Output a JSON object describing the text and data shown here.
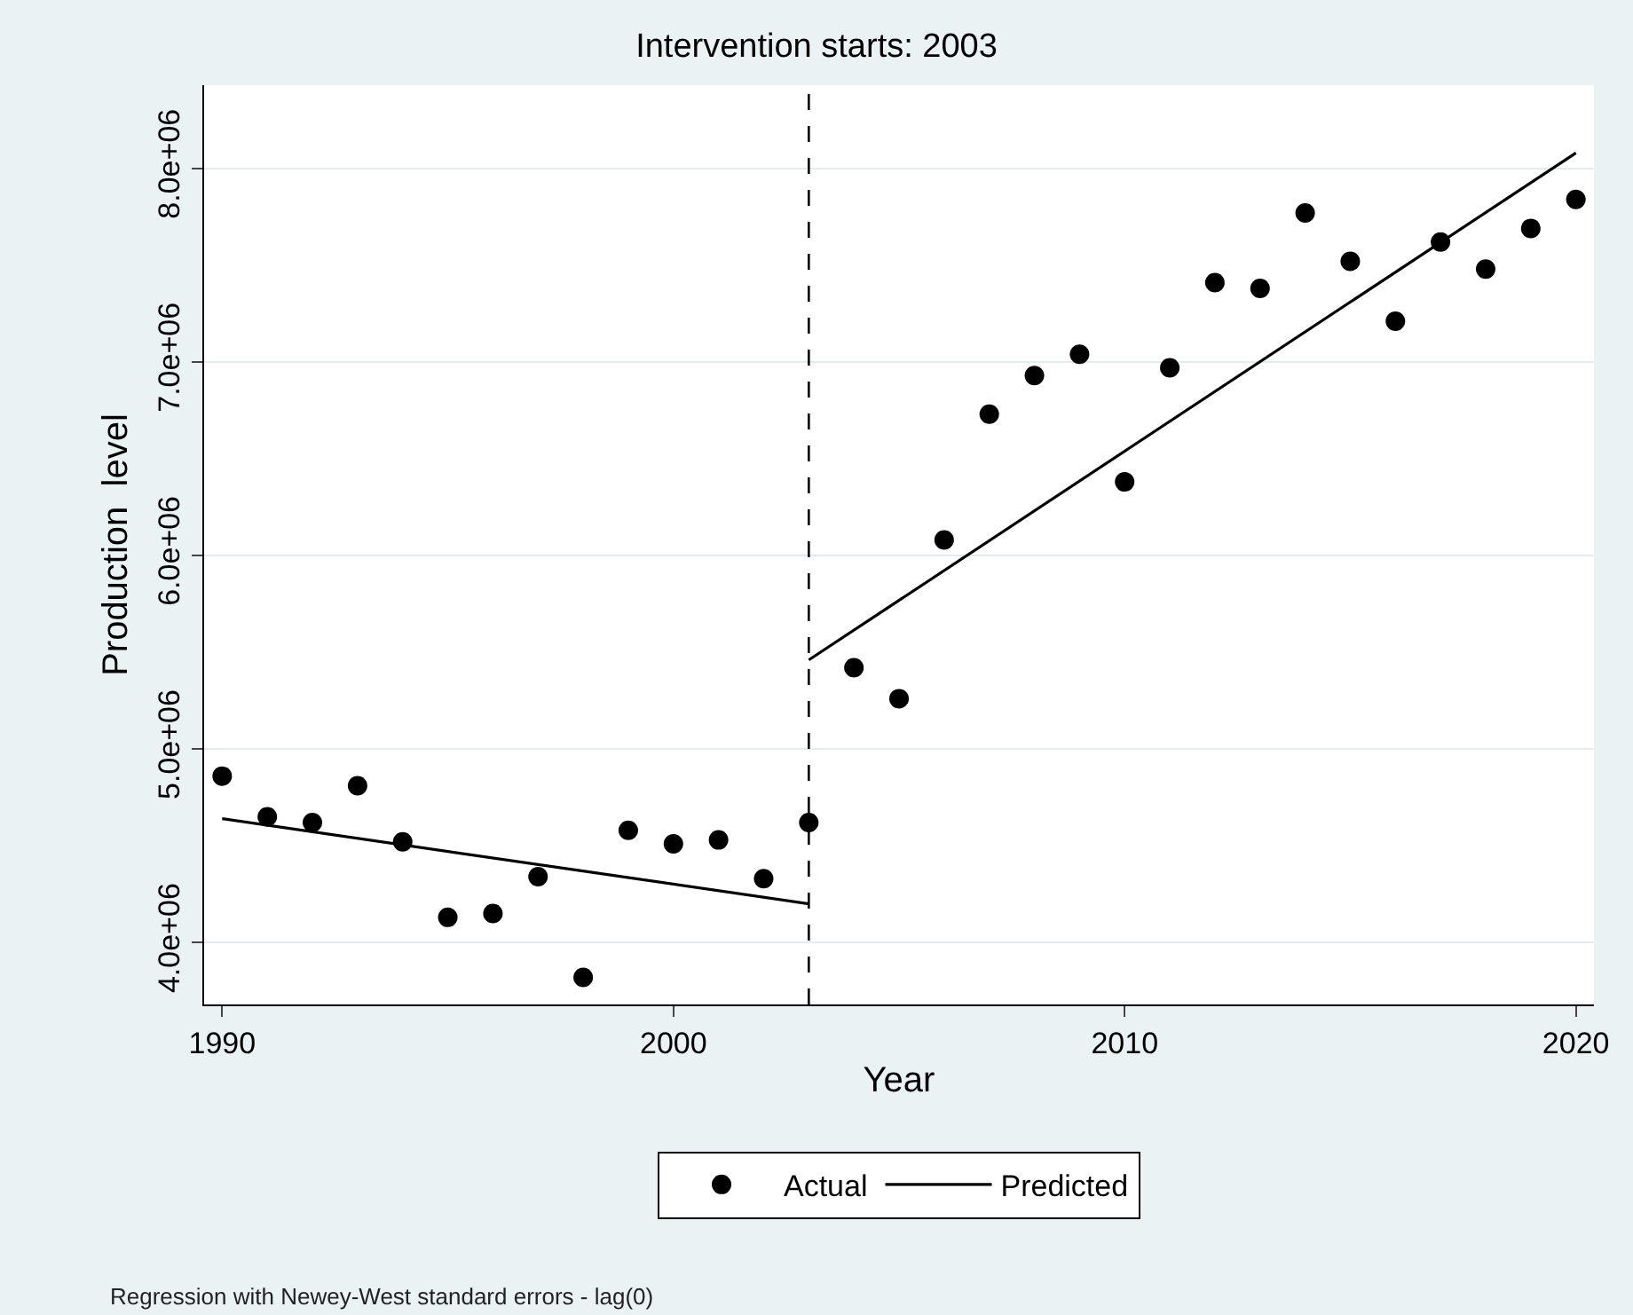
{
  "chart_data": {
    "type": "scatter",
    "title": "Intervention starts: 2003",
    "xlabel": "Year",
    "ylabel": "Production  level",
    "x": [
      1990,
      1991,
      1992,
      1993,
      1994,
      1995,
      1996,
      1997,
      1998,
      1999,
      2000,
      2001,
      2002,
      2003,
      2004,
      2005,
      2006,
      2007,
      2008,
      2009,
      2010,
      2011,
      2012,
      2013,
      2014,
      2015,
      2016,
      2017,
      2018,
      2019,
      2020
    ],
    "series": [
      {
        "name": "Actual",
        "color": "#000000",
        "marker": "circle",
        "values": [
          4860000,
          4650000,
          4620000,
          4810000,
          4520000,
          4130000,
          4150000,
          4340000,
          3820000,
          4580000,
          4510000,
          4530000,
          4330000,
          4620000,
          5420000,
          5260000,
          6080000,
          6730000,
          6930000,
          7040000,
          6380000,
          6970000,
          7410000,
          7380000,
          7770000,
          7520000,
          7210000,
          7620000,
          7480000,
          7690000,
          7840000
        ]
      },
      {
        "name": "Predicted",
        "type": "line",
        "color": "#000000",
        "marker": "none",
        "line_style": "solid",
        "x": [
          1990,
          2003
        ],
        "values": [
          4640000,
          4200000
        ]
      },
      {
        "type": "line",
        "color": "#000000",
        "marker": "none",
        "line_style": "solid",
        "x": [
          2003,
          2020
        ],
        "values": [
          5460000,
          8080000
        ]
      }
    ],
    "xlim": [
      1989.6,
      2020.4
    ],
    "xticks": [
      1990,
      2000,
      2010,
      2020
    ],
    "ylim": [
      3680000,
      8430000
    ],
    "yticks": [
      {
        "value": 4000000,
        "label": "4.0e+06"
      },
      {
        "value": 5000000,
        "label": "5.0e+06"
      },
      {
        "value": 6000000,
        "label": "6.0e+06"
      },
      {
        "value": 7000000,
        "label": "7.0e+06"
      },
      {
        "value": 8000000,
        "label": "8.0e+06"
      }
    ],
    "grid": "y",
    "legend": "bottom",
    "ref_lines": [
      {
        "axis": "x",
        "value": 2003,
        "color": "#000000",
        "line_style": "dashed"
      }
    ],
    "annotations": [
      "Regression with Newey-West standard errors - lag(0)"
    ]
  }
}
